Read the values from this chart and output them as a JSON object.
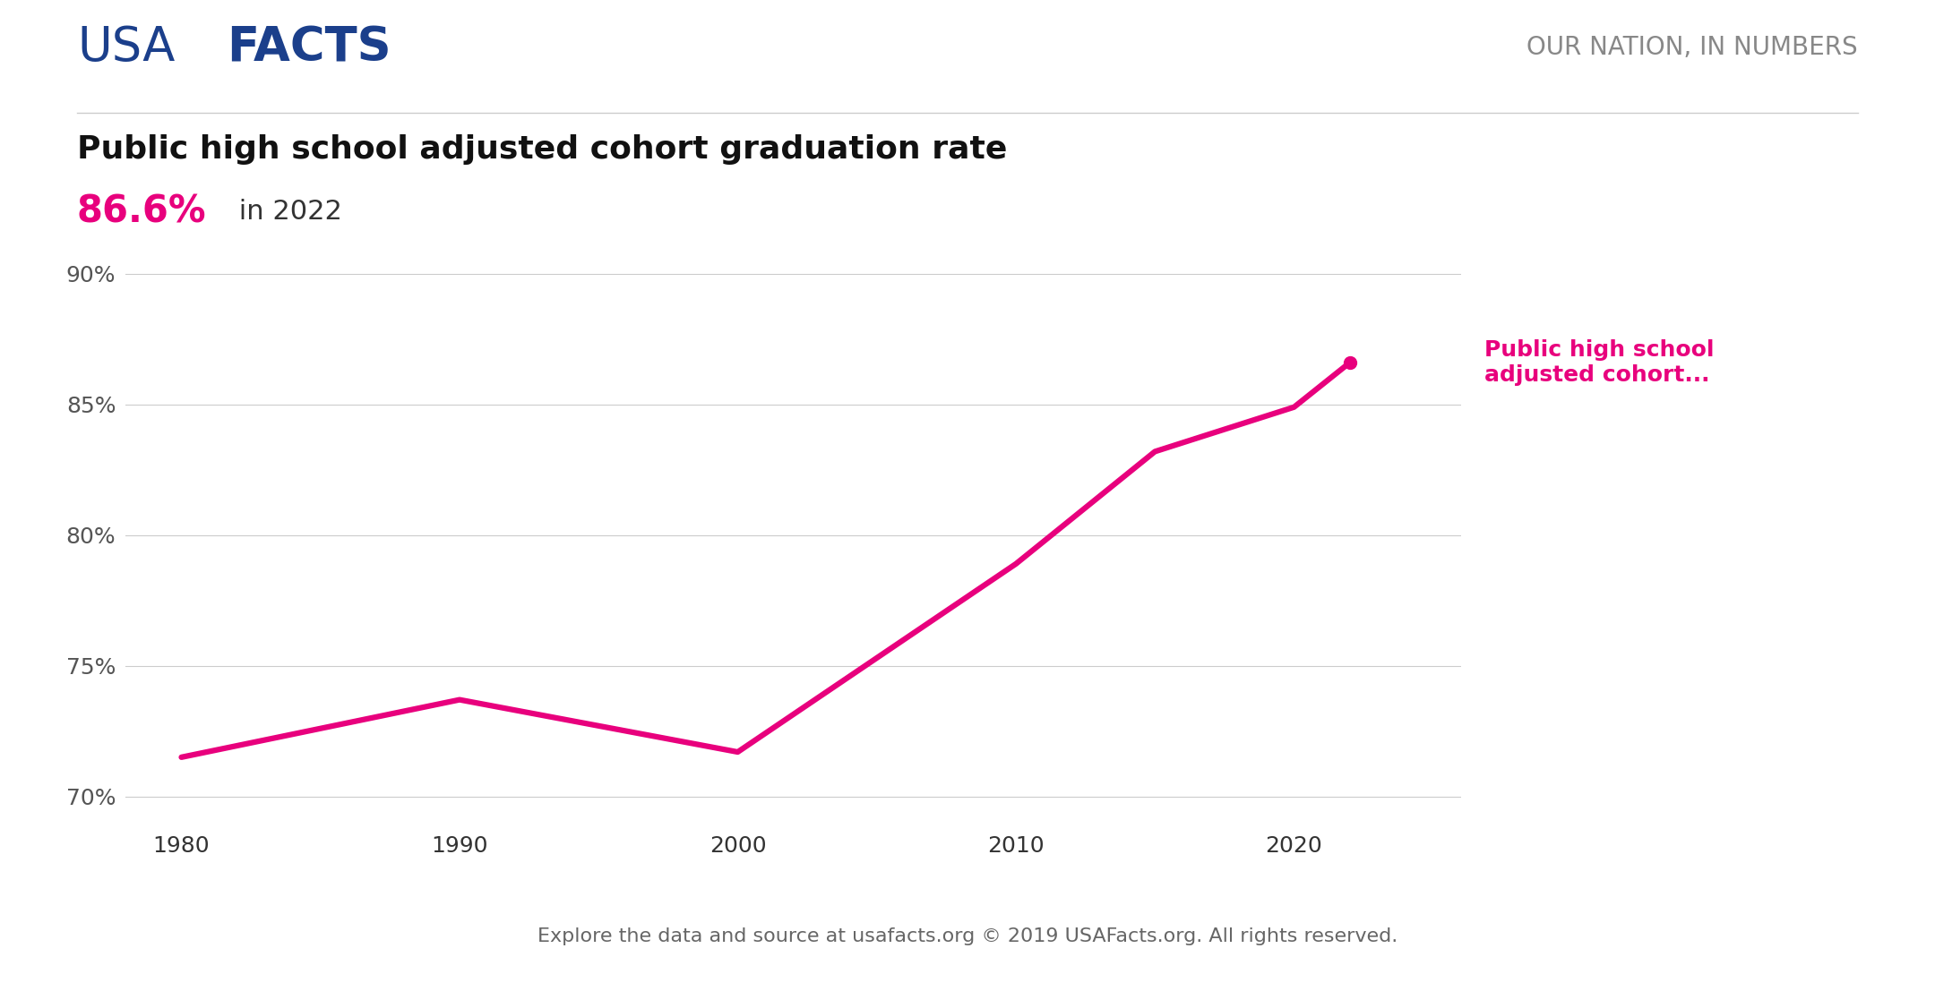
{
  "title": "Public high school adjusted cohort graduation rate",
  "subtitle_value": "86.6%",
  "subtitle_year": " in 2022",
  "line_color": "#E8007D",
  "x_values": [
    1980,
    1990,
    2000,
    2010,
    2015,
    2020,
    2022
  ],
  "y_values": [
    71.5,
    73.7,
    71.7,
    78.9,
    83.2,
    84.9,
    86.6
  ],
  "yticks": [
    70,
    75,
    80,
    85,
    90
  ],
  "ytick_labels": [
    "70%",
    "75%",
    "80%",
    "85%",
    "90%"
  ],
  "xticks": [
    1980,
    1990,
    2000,
    2010,
    2020
  ],
  "ylim": [
    69,
    91
  ],
  "xlim": [
    1978,
    2026
  ],
  "annotation_text": "Public high school\nadjusted cohort...",
  "annotation_color": "#E8007D",
  "usa_text": "USA",
  "facts_text": "FACTS",
  "brand_color": "#1B3F8B",
  "nation_text": "OUR NATION, IN NUMBERS",
  "nation_color": "#888888",
  "footer_text": "Explore the data and source at usafacts.org © 2019 USAFacts.org. All rights reserved.",
  "bg_color": "#FFFFFF",
  "grid_color": "#CCCCCC",
  "line_width": 4.5,
  "marker_size": 10
}
